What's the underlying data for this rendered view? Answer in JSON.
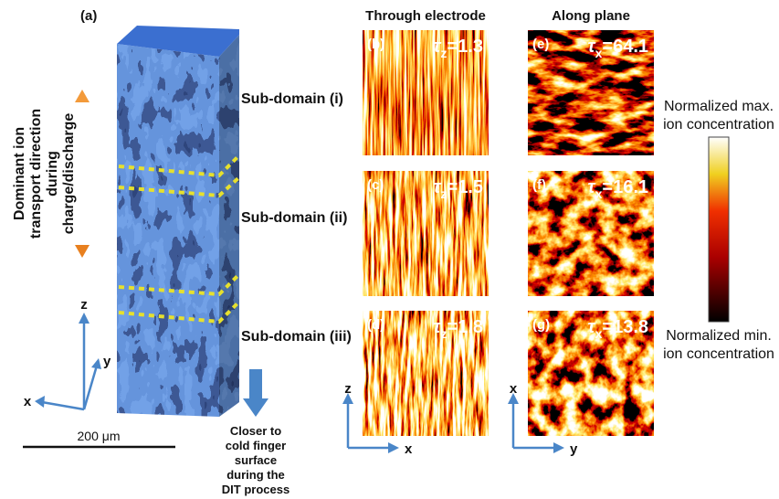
{
  "figure": {
    "panel_a": {
      "label": "(a)",
      "direction_label": [
        "Dominant ion",
        "transport direction",
        "during",
        "charge/discharge"
      ],
      "subdomains": [
        "Sub-domain (i)",
        "Sub-domain (ii)",
        "Sub-domain (iii)"
      ],
      "axes": {
        "z": "z",
        "y": "y",
        "x": "x"
      },
      "scale_bar": "200 μm",
      "note": [
        "Closer to",
        "cold finger",
        "surface",
        "during the",
        "DIT process"
      ]
    },
    "columns": [
      "Through electrode",
      "Along plane"
    ],
    "panels": [
      {
        "label": "(b)",
        "symbol": "τ",
        "sub": "z",
        "value": "=1.3"
      },
      {
        "label": "(e)",
        "symbol": "τ",
        "sub": "x",
        "value": "=64.1"
      },
      {
        "label": "(c)",
        "symbol": "τ",
        "sub": "z",
        "value": "=1.5"
      },
      {
        "label": "(f)",
        "symbol": "τ",
        "sub": "x",
        "value": "=16.1"
      },
      {
        "label": "(d)",
        "symbol": "τ",
        "sub": "z",
        "value": "=1.8"
      },
      {
        "label": "(g)",
        "symbol": "τ",
        "sub": "x",
        "value": "=13.8"
      }
    ],
    "bottom_axes": [
      {
        "vertical": "z",
        "horizontal": "x"
      },
      {
        "vertical": "x",
        "horizontal": "y"
      }
    ],
    "colorbar": {
      "max": [
        "Normalized max.",
        "ion concentration"
      ],
      "min": [
        "Normalized min.",
        "ion concentration"
      ]
    }
  }
}
